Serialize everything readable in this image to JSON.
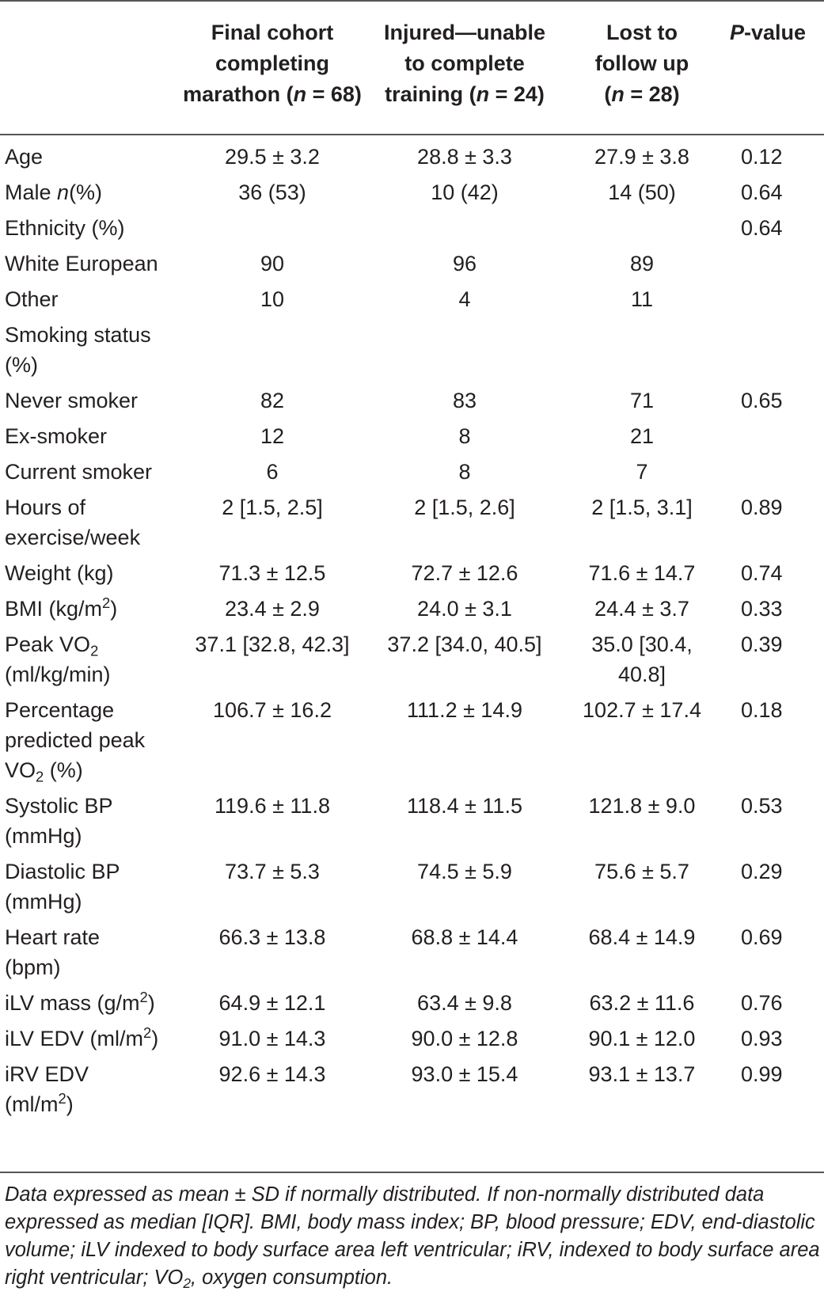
{
  "header": {
    "col1": [
      "Final cohort",
      "completing",
      "marathon (",
      "n",
      " = 68)"
    ],
    "col2": [
      "Injured—unable",
      "to complete",
      "training (",
      "n",
      " = 24)"
    ],
    "col3": [
      "Lost to",
      "follow up",
      "(",
      "n",
      " = 28)"
    ],
    "col4": [
      "P",
      "-value"
    ]
  },
  "rows": [
    {
      "label": "Age",
      "v": [
        "29.5 ± 3.2",
        "28.8 ± 3.3",
        "27.9 ± 3.8"
      ],
      "p": "0.12"
    },
    {
      "label": "Male n(%)",
      "v": [
        "36 (53)",
        "10 (42)",
        "14 (50)"
      ],
      "p": "0.64"
    },
    {
      "label": "Ethnicity (%)",
      "v": [
        "",
        "",
        ""
      ],
      "p": "0.64"
    },
    {
      "label": "White European",
      "v": [
        "90",
        "96",
        "89"
      ],
      "p": ""
    },
    {
      "label": "Other",
      "v": [
        "10",
        "4",
        "11"
      ],
      "p": ""
    },
    {
      "label": "Smoking status (%)",
      "v": [
        "",
        "",
        ""
      ],
      "p": ""
    },
    {
      "label": "Never smoker",
      "v": [
        "82",
        "83",
        "71"
      ],
      "p": "0.65"
    },
    {
      "label": "Ex-smoker",
      "v": [
        "12",
        "8",
        "21"
      ],
      "p": ""
    },
    {
      "label": "Current smoker",
      "v": [
        "6",
        "8",
        "7"
      ],
      "p": ""
    },
    {
      "label": "Hours of exercise/week",
      "v": [
        "2 [1.5, 2.5]",
        "2 [1.5, 2.6]",
        "2 [1.5, 3.1]"
      ],
      "p": "0.89"
    },
    {
      "label": "Weight (kg)",
      "v": [
        "71.3 ± 12.5",
        "72.7 ± 12.6",
        "71.6 ± 14.7"
      ],
      "p": "0.74"
    },
    {
      "label": "BMI (kg/m2)",
      "v": [
        "23.4 ± 2.9",
        "24.0 ± 3.1",
        "24.4 ± 3.7"
      ],
      "p": "0.33"
    },
    {
      "label": "Peak VO2 (ml/kg/min)",
      "v": [
        "37.1 [32.8, 42.3]",
        "37.2 [34.0, 40.5]",
        "35.0 [30.4, 40.8]"
      ],
      "p": "0.39"
    },
    {
      "label": "Percentage predicted peak VO2 (%)",
      "v": [
        "106.7 ± 16.2",
        "111.2 ± 14.9",
        "102.7 ± 17.4"
      ],
      "p": "0.18"
    },
    {
      "label": "Systolic BP (mmHg)",
      "v": [
        "119.6 ± 11.8",
        "118.4 ± 11.5",
        "121.8 ± 9.0"
      ],
      "p": "0.53"
    },
    {
      "label": "Diastolic BP (mmHg)",
      "v": [
        "73.7 ± 5.3",
        "74.5 ± 5.9",
        "75.6 ± 5.7"
      ],
      "p": "0.29"
    },
    {
      "label": "Heart rate (bpm)",
      "v": [
        "66.3 ± 13.8",
        "68.8 ± 14.4",
        "68.4 ± 14.9"
      ],
      "p": "0.69"
    },
    {
      "label": "iLV mass (g/m2)",
      "v": [
        "64.9 ± 12.1",
        "63.4 ± 9.8",
        "63.2 ± 11.6"
      ],
      "p": "0.76"
    },
    {
      "label": "iLV EDV (ml/m2)",
      "v": [
        "91.0 ± 14.3",
        "90.0 ± 12.8",
        "90.1 ± 12.0"
      ],
      "p": "0.93"
    },
    {
      "label": "iRV EDV (ml/m2)",
      "v": [
        "92.6 ± 14.3",
        "93.0 ± 15.4",
        "93.1 ± 13.7"
      ],
      "p": "0.99"
    }
  ],
  "footnote": {
    "a": "Data expressed as mean ± SD if normally distributed. If non-normally distributed data expressed as median [IQR]. BMI, body mass index; BP, blood pressure; EDV, end-diastolic volume; iLV indexed to body surface area left ventricular; iRV, indexed to body surface area right ventricular; VO",
    "sub": "2",
    "b": ", oxygen consumption."
  }
}
